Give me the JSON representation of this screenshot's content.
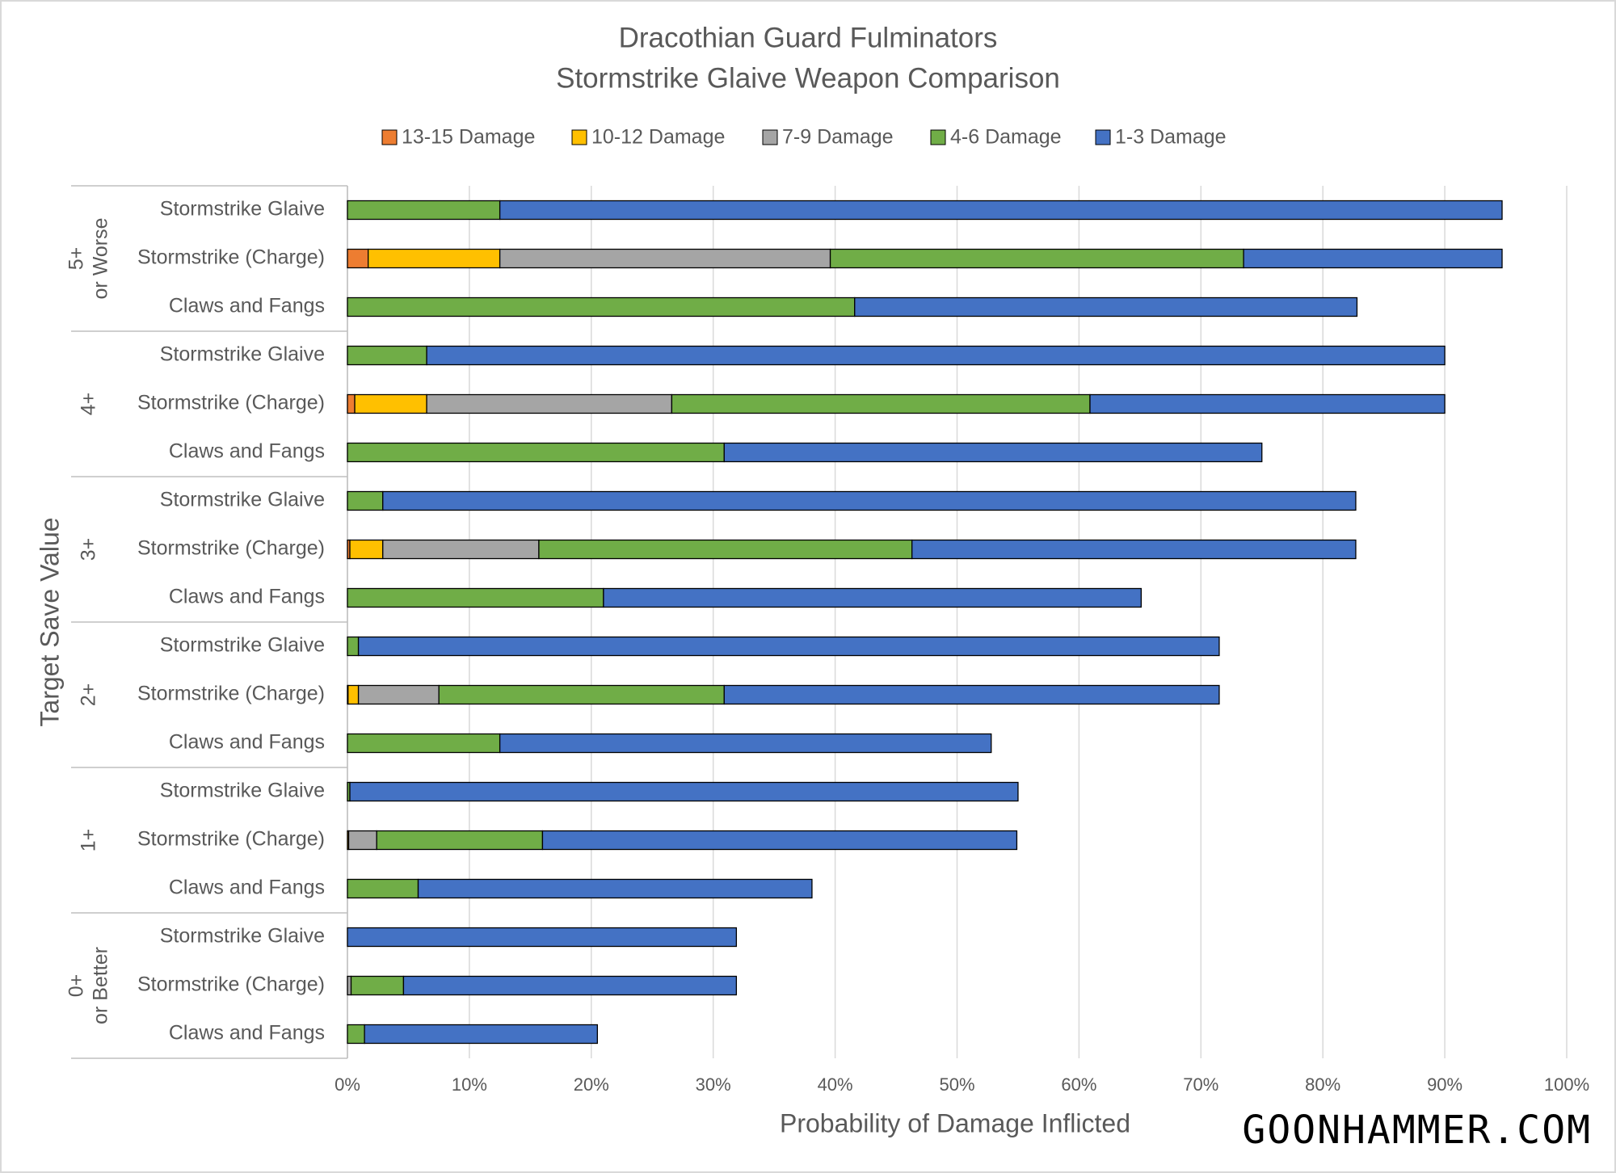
{
  "chart_data": {
    "type": "stacked-bar-horizontal",
    "title": [
      "Dracothian Guard Fulminators",
      "Stormstrike Glaive Weapon Comparison"
    ],
    "x_label": "Probability of Damage Inflicted",
    "y_label": "Target Save Value",
    "groups": [
      [
        "5+",
        "or Worse"
      ],
      [
        "4+"
      ],
      [
        "3+"
      ],
      [
        "2+"
      ],
      [
        "1+"
      ],
      [
        "0+",
        "or Better"
      ]
    ],
    "categories": [
      "Stormstrike Glaive",
      "Stormstrike (Charge)",
      "Claws and Fangs",
      "Stormstrike Glaive",
      "Stormstrike (Charge)",
      "Claws and Fangs",
      "Stormstrike Glaive",
      "Stormstrike (Charge)",
      "Claws and Fangs",
      "Stormstrike Glaive",
      "Stormstrike (Charge)",
      "Claws and Fangs",
      "Stormstrike Glaive",
      "Stormstrike (Charge)",
      "Claws and Fangs",
      "Stormstrike Glaive",
      "Stormstrike (Charge)",
      "Claws and Fangs"
    ],
    "series": [
      {
        "name": "13-15 Damage",
        "color": "#ed7d31",
        "values": [
          0,
          1.7,
          0,
          0,
          0.6,
          0,
          0,
          0.2,
          0,
          0,
          0.05,
          0,
          0,
          0,
          0,
          0,
          0,
          0
        ]
      },
      {
        "name": "10-12 Damage",
        "color": "#ffc000",
        "values": [
          0,
          10.8,
          0,
          0,
          5.9,
          0,
          0,
          2.7,
          0,
          0,
          0.85,
          0,
          0,
          0.1,
          0,
          0,
          0,
          0
        ]
      },
      {
        "name": "7-9 Damage",
        "color": "#a5a5a5",
        "values": [
          0,
          27.1,
          0,
          0,
          20.1,
          0,
          0,
          12.8,
          0,
          0,
          6.6,
          0,
          0,
          2.3,
          0,
          0,
          0.3,
          0
        ]
      },
      {
        "name": "4-6 Damage",
        "color": "#70ad47",
        "values": [
          12.5,
          33.9,
          41.6,
          6.5,
          34.3,
          30.9,
          2.9,
          30.6,
          21.0,
          0.9,
          23.4,
          12.5,
          0.2,
          13.6,
          5.8,
          0,
          4.3,
          1.4
        ]
      },
      {
        "name": "1-3 Damage",
        "color": "#4472c4",
        "values": [
          82.2,
          21.2,
          41.2,
          83.5,
          29.1,
          44.1,
          79.8,
          36.4,
          44.1,
          70.6,
          40.6,
          40.3,
          54.8,
          38.9,
          32.3,
          31.9,
          27.3,
          19.1
        ]
      }
    ],
    "xlim": [
      0,
      100
    ],
    "xticks": [
      {
        "value": 0,
        "label": "0%"
      },
      {
        "value": 10,
        "label": "10%"
      },
      {
        "value": 20,
        "label": "20%"
      },
      {
        "value": 30,
        "label": "30%"
      },
      {
        "value": 40,
        "label": "40%"
      },
      {
        "value": 50,
        "label": "50%"
      },
      {
        "value": 60,
        "label": "60%"
      },
      {
        "value": 70,
        "label": "70%"
      },
      {
        "value": 80,
        "label": "80%"
      },
      {
        "value": 90,
        "label": "90%"
      },
      {
        "value": 100,
        "label": "100%"
      }
    ],
    "grid": true,
    "legend_position": "top",
    "watermark": "GOONHAMMER.COM"
  }
}
